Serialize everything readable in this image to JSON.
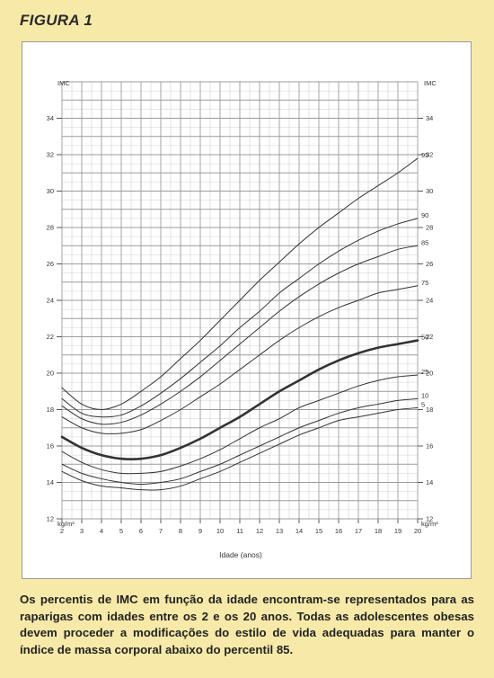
{
  "figure": {
    "title": "FIGURA 1"
  },
  "caption": "Os percentis de IMC em função da idade encontram-se representados para as raparigas com idades entre os 2 e os 20 anos. Todas as adolescentes obesas devem proceder a modificações do estilo de vida adequadas para manter o índice de massa corporal abaixo do percentil 85.",
  "colors": {
    "background": "#f7eaa8",
    "panel": "#ffffff",
    "grid_major": "#9c9c9c",
    "grid_minor": "#d0d0d0",
    "curve": "#333333"
  },
  "chart_data": {
    "type": "line",
    "title": "",
    "xlabel": "Idade (anos)",
    "ylabel": "IMC",
    "yunit": "kg/m²",
    "xlim": [
      2,
      20
    ],
    "ylim": [
      12,
      36
    ],
    "xticks": [
      2,
      3,
      4,
      5,
      6,
      7,
      8,
      9,
      10,
      11,
      12,
      13,
      14,
      15,
      16,
      17,
      18,
      19,
      20
    ],
    "yticks": [
      12,
      14,
      16,
      18,
      20,
      22,
      24,
      26,
      28,
      30,
      32,
      34
    ],
    "grid": true,
    "series": [
      {
        "name": "95",
        "emphasis": false,
        "x": [
          2,
          3,
          4,
          5,
          6,
          7,
          8,
          9,
          10,
          11,
          12,
          13,
          14,
          15,
          16,
          17,
          18,
          19,
          20
        ],
        "y": [
          19.2,
          18.3,
          18.0,
          18.3,
          19.0,
          19.8,
          20.8,
          21.8,
          22.9,
          24.0,
          25.1,
          26.1,
          27.1,
          28.0,
          28.8,
          29.6,
          30.3,
          31.0,
          31.8
        ]
      },
      {
        "name": "90",
        "emphasis": false,
        "x": [
          2,
          3,
          4,
          5,
          6,
          7,
          8,
          9,
          10,
          11,
          12,
          13,
          14,
          15,
          16,
          17,
          18,
          19,
          20
        ],
        "y": [
          18.6,
          17.8,
          17.6,
          17.7,
          18.2,
          18.9,
          19.7,
          20.6,
          21.5,
          22.5,
          23.4,
          24.4,
          25.2,
          26.0,
          26.7,
          27.3,
          27.8,
          28.2,
          28.5
        ]
      },
      {
        "name": "85",
        "emphasis": false,
        "x": [
          2,
          3,
          4,
          5,
          6,
          7,
          8,
          9,
          10,
          11,
          12,
          13,
          14,
          15,
          16,
          17,
          18,
          19,
          20
        ],
        "y": [
          18.2,
          17.5,
          17.2,
          17.3,
          17.7,
          18.3,
          19.0,
          19.8,
          20.7,
          21.6,
          22.5,
          23.4,
          24.2,
          24.9,
          25.5,
          26.0,
          26.4,
          26.8,
          27.0
        ]
      },
      {
        "name": "75",
        "emphasis": false,
        "x": [
          2,
          3,
          4,
          5,
          6,
          7,
          8,
          9,
          10,
          11,
          12,
          13,
          14,
          15,
          16,
          17,
          18,
          19,
          20
        ],
        "y": [
          17.6,
          17.0,
          16.7,
          16.7,
          16.9,
          17.4,
          18.0,
          18.7,
          19.4,
          20.2,
          21.0,
          21.8,
          22.5,
          23.1,
          23.6,
          24.0,
          24.4,
          24.6,
          24.8
        ]
      },
      {
        "name": "50",
        "emphasis": true,
        "x": [
          2,
          3,
          4,
          5,
          6,
          7,
          8,
          9,
          10,
          11,
          12,
          13,
          14,
          15,
          16,
          17,
          18,
          19,
          20
        ],
        "y": [
          16.5,
          15.9,
          15.5,
          15.3,
          15.3,
          15.5,
          15.9,
          16.4,
          17.0,
          17.6,
          18.3,
          19.0,
          19.6,
          20.2,
          20.7,
          21.1,
          21.4,
          21.6,
          21.8
        ]
      },
      {
        "name": "25",
        "emphasis": false,
        "x": [
          2,
          3,
          4,
          5,
          6,
          7,
          8,
          9,
          10,
          11,
          12,
          13,
          14,
          15,
          16,
          17,
          18,
          19,
          20
        ],
        "y": [
          15.7,
          15.1,
          14.7,
          14.5,
          14.5,
          14.6,
          14.9,
          15.3,
          15.8,
          16.4,
          17.0,
          17.5,
          18.1,
          18.5,
          18.9,
          19.3,
          19.6,
          19.8,
          19.9
        ]
      },
      {
        "name": "10",
        "emphasis": false,
        "x": [
          2,
          3,
          4,
          5,
          6,
          7,
          8,
          9,
          10,
          11,
          12,
          13,
          14,
          15,
          16,
          17,
          18,
          19,
          20
        ],
        "y": [
          15.0,
          14.5,
          14.2,
          14.0,
          13.9,
          14.0,
          14.2,
          14.6,
          15.0,
          15.5,
          16.0,
          16.5,
          17.0,
          17.4,
          17.8,
          18.1,
          18.3,
          18.5,
          18.6
        ]
      },
      {
        "name": "5",
        "emphasis": false,
        "x": [
          2,
          3,
          4,
          5,
          6,
          7,
          8,
          9,
          10,
          11,
          12,
          13,
          14,
          15,
          16,
          17,
          18,
          19,
          20
        ],
        "y": [
          14.6,
          14.1,
          13.8,
          13.7,
          13.6,
          13.6,
          13.8,
          14.2,
          14.6,
          15.1,
          15.6,
          16.1,
          16.6,
          17.0,
          17.4,
          17.6,
          17.8,
          18.0,
          18.1
        ]
      }
    ]
  }
}
